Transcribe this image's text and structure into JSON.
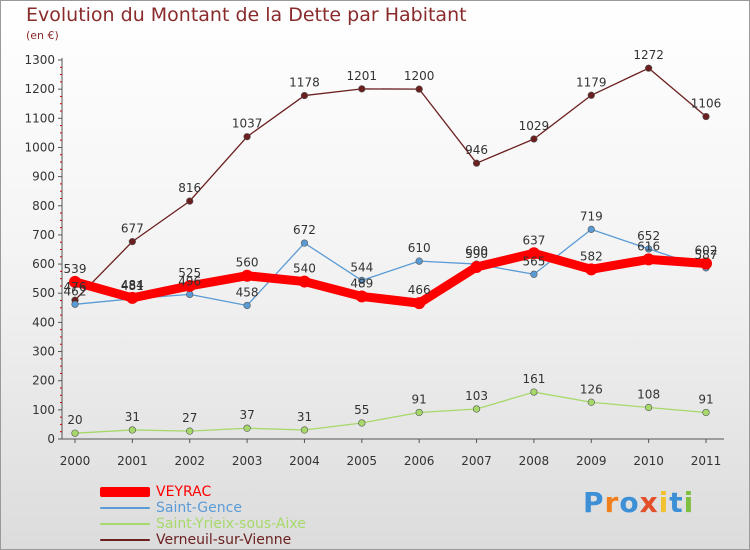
{
  "title": "Evolution du Montant de la Dette par Habitant",
  "unit": "(en €)",
  "logo_text": "Proxiti",
  "chart_data": {
    "type": "line",
    "x": [
      "2000",
      "2001",
      "2002",
      "2003",
      "2004",
      "2005",
      "2006",
      "2007",
      "2008",
      "2009",
      "2010",
      "2011"
    ],
    "ylim": [
      0,
      1300
    ],
    "yticks": [
      0,
      100,
      200,
      300,
      400,
      500,
      600,
      700,
      800,
      900,
      1000,
      1100,
      1200,
      1300
    ],
    "grid": false,
    "legend_position": "bottom-left",
    "series": [
      {
        "name": "Verneuil-sur-Vienne",
        "color": "#6b1f1f",
        "values": [
          476,
          677,
          816,
          1037,
          1178,
          1201,
          1200,
          946,
          1029,
          1179,
          1272,
          1106
        ]
      },
      {
        "name": "Saint-Gence",
        "color": "#5b9bd5",
        "values": [
          462,
          481,
          496,
          458,
          672,
          544,
          610,
          600,
          565,
          719,
          652,
          587
        ]
      },
      {
        "name": "Saint-Yrieix-sous-Aixe",
        "color": "#a6d96a",
        "values": [
          20,
          31,
          27,
          37,
          31,
          55,
          91,
          103,
          161,
          126,
          108,
          91
        ]
      },
      {
        "name": "VEYRAC",
        "color": "#ff0000",
        "values": [
          539,
          484,
          525,
          560,
          540,
          489,
          466,
          590,
          637,
          582,
          616,
          602
        ]
      }
    ],
    "data_labels": [
      {
        "series": "Verneuil-sur-Vienne",
        "labels": [
          "476",
          "677",
          "816",
          "1037",
          "1178",
          "1201",
          "1200",
          "946",
          "1029",
          "1179",
          "1272",
          "1106"
        ]
      },
      {
        "series": "Saint-Gence",
        "labels": [
          "462",
          "481",
          "496",
          "458",
          "672",
          "544",
          "610",
          "600",
          "565",
          "719",
          "652",
          "587"
        ]
      },
      {
        "series": "Saint-Yrieix-sous-Aixe",
        "labels": [
          "20",
          "31",
          "27",
          "37",
          "31",
          "55",
          "91",
          "103",
          "161",
          "126",
          "108",
          "91"
        ]
      },
      {
        "series": "VEYRAC",
        "labels": [
          "539",
          "484",
          "525",
          "560",
          "540",
          "489",
          "466",
          "590",
          "637",
          "582",
          "616",
          "602"
        ]
      }
    ]
  },
  "legend": [
    {
      "label": "VEYRAC",
      "color": "#ff0000"
    },
    {
      "label": "Saint-Gence",
      "color": "#5b9bd5"
    },
    {
      "label": "Saint-Yrieix-sous-Aixe",
      "color": "#a6d96a"
    },
    {
      "label": "Verneuil-sur-Vienne",
      "color": "#6b1f1f"
    }
  ]
}
